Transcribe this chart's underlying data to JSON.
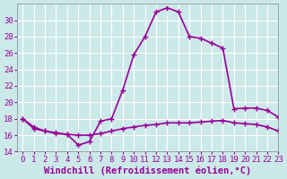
{
  "xlabel": "Windchill (Refroidissement éolien,°C)",
  "ylabel": "",
  "background_color": "#cce9e9",
  "plot_background": "#cce9e9",
  "grid_color": "#ffffff",
  "line_color": "#990099",
  "xlim": [
    -0.5,
    23
  ],
  "ylim": [
    14,
    32
  ],
  "yticks": [
    14,
    16,
    18,
    20,
    22,
    24,
    26,
    28,
    30
  ],
  "xticks": [
    0,
    1,
    2,
    3,
    4,
    5,
    6,
    7,
    8,
    9,
    10,
    11,
    12,
    13,
    14,
    15,
    16,
    17,
    18,
    19,
    20,
    21,
    22,
    23
  ],
  "series1_x": [
    0,
    1,
    2,
    3,
    4,
    5,
    6,
    7,
    8,
    9,
    10,
    11,
    12,
    13,
    14,
    15,
    16,
    17,
    18,
    19,
    20,
    21,
    22,
    23
  ],
  "series1_y": [
    18.0,
    17.0,
    16.5,
    16.2,
    16.1,
    14.8,
    15.2,
    17.7,
    18.0,
    21.5,
    25.8,
    28.0,
    31.0,
    31.5,
    31.0,
    28.0,
    27.8,
    27.2,
    26.6,
    19.2,
    19.3,
    19.3,
    19.0,
    18.2
  ],
  "series2_x": [
    0,
    1,
    2,
    3,
    4,
    5,
    6,
    7,
    8,
    9,
    10,
    11,
    12,
    13,
    14,
    15,
    16,
    17,
    18,
    19,
    20,
    21,
    22,
    23
  ],
  "series2_y": [
    18.0,
    16.8,
    16.5,
    16.3,
    16.1,
    16.0,
    16.0,
    16.2,
    16.5,
    16.8,
    17.0,
    17.2,
    17.3,
    17.5,
    17.5,
    17.5,
    17.6,
    17.7,
    17.8,
    17.5,
    17.4,
    17.3,
    17.0,
    16.5
  ],
  "marker": "+",
  "markersize": 5,
  "linewidth": 1.2,
  "tick_fontsize": 6.5,
  "label_fontsize": 7.5
}
